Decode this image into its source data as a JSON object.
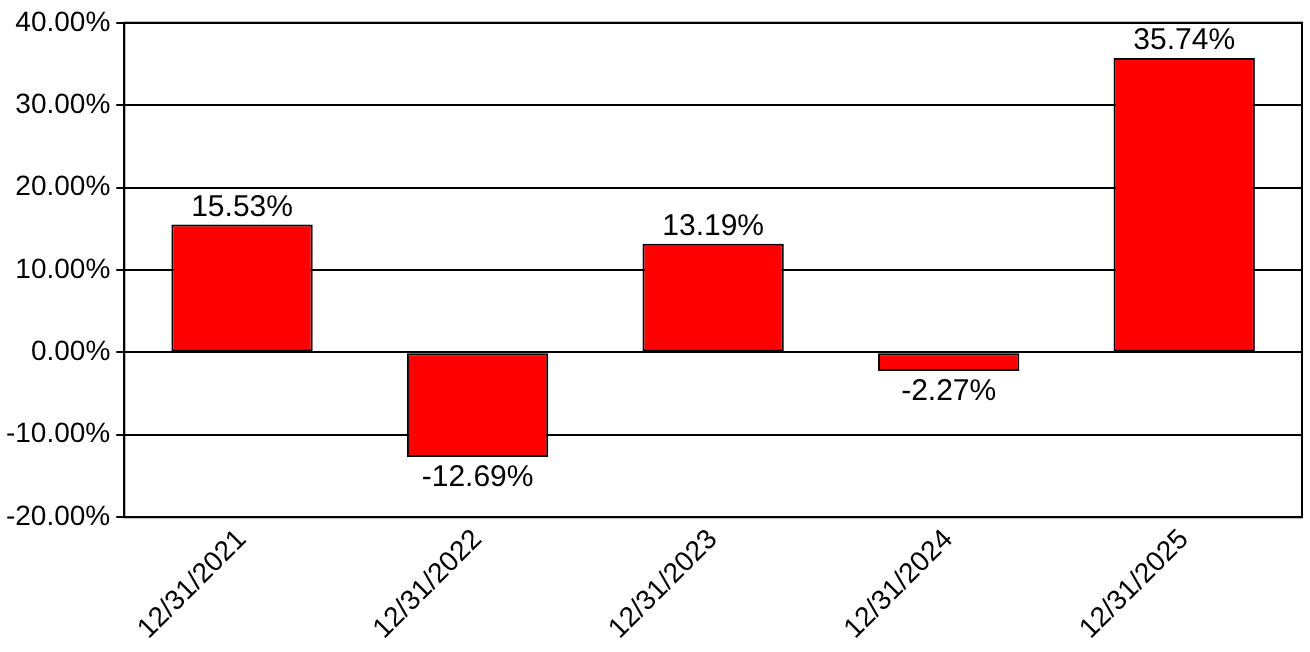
{
  "chart_data": {
    "type": "bar",
    "categories": [
      "12/31/2021",
      "12/31/2022",
      "12/31/2023",
      "12/31/2024",
      "12/31/2025"
    ],
    "values": [
      15.53,
      -12.69,
      13.19,
      -2.27,
      35.74
    ],
    "value_labels": [
      "15.53%",
      "-12.69%",
      "13.19%",
      "-2.27%",
      "35.74%"
    ],
    "color": "#ff0000",
    "ylim": [
      -20,
      40
    ],
    "yticks": [
      {
        "value": -20,
        "label": "-20.00%"
      },
      {
        "value": -10,
        "label": "-10.00%"
      },
      {
        "value": 0,
        "label": "0.00%"
      },
      {
        "value": 10,
        "label": "10.00%"
      },
      {
        "value": 20,
        "label": "20.00%"
      },
      {
        "value": 30,
        "label": "30.00%"
      },
      {
        "value": 40,
        "label": "40.00%"
      }
    ],
    "grid": "y",
    "legend": false
  }
}
